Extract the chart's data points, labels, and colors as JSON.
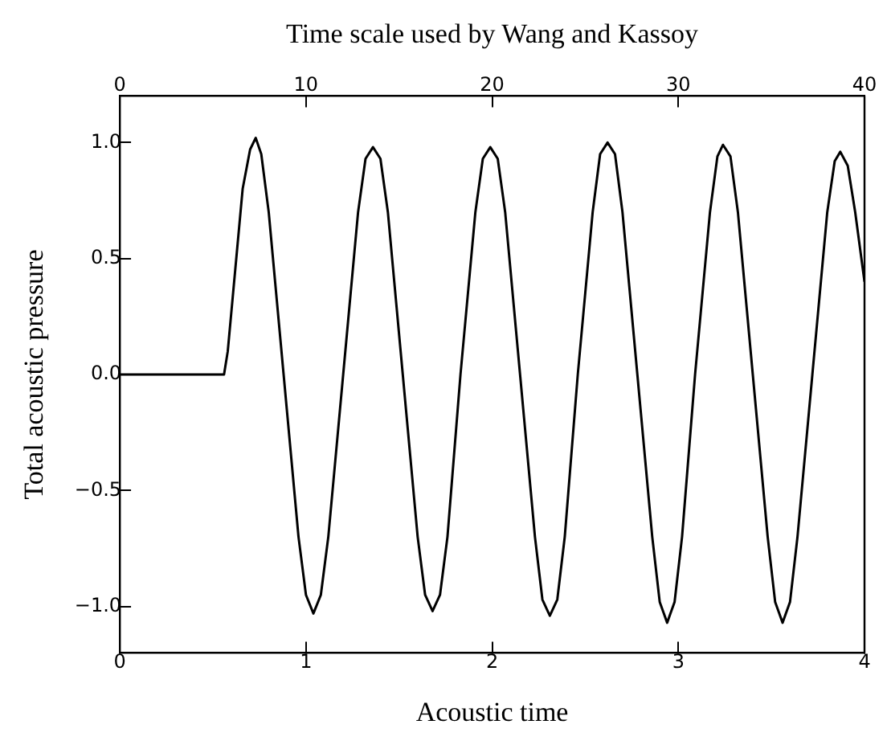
{
  "chart_data": {
    "type": "line",
    "xlabel": "Acoustic time",
    "ylabel": "Total acoustic pressure",
    "x2label": "Time scale used by Wang and Kassoy",
    "x": [
      0,
      0.56,
      0.58,
      0.62,
      0.66,
      0.7,
      0.73,
      0.76,
      0.8,
      0.88,
      0.96,
      1.0,
      1.04,
      1.08,
      1.12,
      1.2,
      1.28,
      1.32,
      1.36,
      1.4,
      1.44,
      1.52,
      1.6,
      1.64,
      1.68,
      1.72,
      1.76,
      1.83,
      1.91,
      1.95,
      1.99,
      2.03,
      2.07,
      2.15,
      2.23,
      2.27,
      2.31,
      2.35,
      2.39,
      2.46,
      2.54,
      2.58,
      2.62,
      2.66,
      2.7,
      2.78,
      2.86,
      2.9,
      2.94,
      2.98,
      3.02,
      3.09,
      3.17,
      3.21,
      3.24,
      3.28,
      3.32,
      3.4,
      3.48,
      3.52,
      3.56,
      3.6,
      3.64,
      3.72,
      3.8,
      3.84,
      3.87,
      3.91,
      3.95,
      4.0
    ],
    "series": [
      {
        "color": "#000000",
        "values": [
          0,
          0,
          0.1,
          0.45,
          0.8,
          0.97,
          1.02,
          0.95,
          0.7,
          0.0,
          -0.7,
          -0.95,
          -1.03,
          -0.95,
          -0.7,
          0.0,
          0.7,
          0.93,
          0.98,
          0.93,
          0.7,
          0.0,
          -0.7,
          -0.95,
          -1.02,
          -0.95,
          -0.7,
          0.0,
          0.7,
          0.93,
          0.98,
          0.93,
          0.7,
          0.0,
          -0.7,
          -0.97,
          -1.04,
          -0.97,
          -0.7,
          0.0,
          0.7,
          0.95,
          1.0,
          0.95,
          0.7,
          0.0,
          -0.7,
          -0.98,
          -1.07,
          -0.98,
          -0.7,
          0.0,
          0.7,
          0.94,
          0.99,
          0.94,
          0.7,
          0.0,
          -0.7,
          -0.98,
          -1.07,
          -0.98,
          -0.7,
          0.0,
          0.7,
          0.92,
          0.96,
          0.9,
          0.7,
          0.4
        ]
      }
    ],
    "xlim": [
      0,
      4
    ],
    "xticks": [
      0,
      1,
      2,
      3,
      4
    ],
    "x2lim": [
      0,
      40
    ],
    "x2ticks": [
      0,
      10,
      20,
      30,
      40
    ],
    "ylim": [
      -1.2,
      1.2
    ],
    "yticks": [
      {
        "value": -1,
        "label": "−1.0"
      },
      {
        "value": -0.5,
        "label": "−0.5"
      },
      {
        "value": 0,
        "label": "0.0"
      },
      {
        "value": 0.5,
        "label": "0.5"
      },
      {
        "value": 1,
        "label": "1.0"
      }
    ],
    "grid": false,
    "legend": false,
    "marker": "none",
    "line_style": "solid"
  }
}
